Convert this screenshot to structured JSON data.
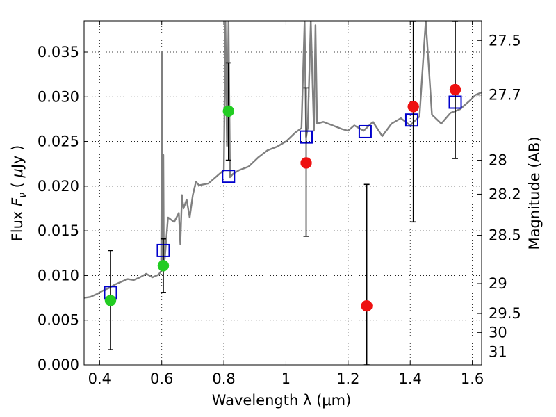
{
  "chart_data": {
    "type": "scatter",
    "xlabel": "Wavelength  λ (μm)",
    "ylabel_parts": [
      "Flux ",
      "F",
      "ν",
      "  ( ",
      "μ",
      "Jy )"
    ],
    "y2label": "Magnitude (AB)",
    "xlim": [
      0.35,
      1.63
    ],
    "ylim": [
      0.0,
      0.0385
    ],
    "grid": true,
    "x_ticks": [
      0.4,
      0.6,
      0.8,
      1.0,
      1.2,
      1.4,
      1.6
    ],
    "x_tick_labels": [
      "0.4",
      "0.6",
      "0.8",
      "1",
      "1.2",
      "1.4",
      "1.6"
    ],
    "y_ticks": [
      0.0,
      0.005,
      0.01,
      0.015,
      0.02,
      0.025,
      0.03,
      0.035
    ],
    "y_tick_labels": [
      "0.000",
      "0.005",
      "0.010",
      "0.015",
      "0.020",
      "0.025",
      "0.030",
      "0.035"
    ],
    "mag_tick_labels": [
      "27.5",
      "27.7",
      "28",
      "28.2",
      "28.5",
      "29",
      "29.5",
      "30",
      "31"
    ],
    "mag_tick_flux": [
      0.0363,
      0.0302,
      0.0229,
      0.0191,
      0.0145,
      0.0091,
      0.00575,
      0.00363,
      0.00144
    ],
    "colors": {
      "spectrum": "#808080",
      "model_box": "#0000cc",
      "detection": "#22cc22",
      "upper": "#ee1111",
      "errorbar": "#000000"
    },
    "spectrum": {
      "name": "",
      "x": [
        0.35,
        0.37,
        0.39,
        0.41,
        0.43,
        0.45,
        0.47,
        0.49,
        0.51,
        0.53,
        0.55,
        0.57,
        0.59,
        0.598,
        0.601,
        0.603,
        0.605,
        0.607,
        0.61,
        0.62,
        0.64,
        0.655,
        0.66,
        0.665,
        0.67,
        0.68,
        0.69,
        0.7,
        0.71,
        0.72,
        0.75,
        0.78,
        0.8,
        0.805,
        0.81,
        0.815,
        0.82,
        0.83,
        0.85,
        0.88,
        0.91,
        0.94,
        0.97,
        1.0,
        1.03,
        1.05,
        1.06,
        1.065,
        1.07,
        1.08,
        1.09,
        1.095,
        1.1,
        1.12,
        1.15,
        1.18,
        1.2,
        1.22,
        1.25,
        1.28,
        1.31,
        1.34,
        1.37,
        1.4,
        1.43,
        1.45,
        1.47,
        1.5,
        1.53,
        1.56,
        1.59,
        1.61,
        1.63
      ],
      "y": [
        0.0075,
        0.0076,
        0.0079,
        0.0083,
        0.0086,
        0.009,
        0.0093,
        0.0096,
        0.0095,
        0.0098,
        0.0102,
        0.0098,
        0.0101,
        0.0105,
        0.035,
        0.0114,
        0.0235,
        0.0112,
        0.012,
        0.0165,
        0.016,
        0.017,
        0.0135,
        0.019,
        0.0175,
        0.0185,
        0.0165,
        0.019,
        0.0205,
        0.0201,
        0.0203,
        0.0212,
        0.0218,
        0.0385,
        0.0245,
        0.0385,
        0.021,
        0.0214,
        0.0218,
        0.0222,
        0.0232,
        0.024,
        0.0244,
        0.025,
        0.026,
        0.0265,
        0.0385,
        0.0255,
        0.0265,
        0.0385,
        0.0262,
        0.038,
        0.027,
        0.0272,
        0.0268,
        0.0264,
        0.0262,
        0.0268,
        0.0262,
        0.0272,
        0.0256,
        0.027,
        0.0276,
        0.0268,
        0.0278,
        0.0385,
        0.028,
        0.027,
        0.0282,
        0.0286,
        0.0295,
        0.0302,
        0.0305
      ]
    },
    "model_boxes": {
      "x": [
        0.435,
        0.605,
        0.815,
        1.065,
        1.255,
        1.405,
        1.545
      ],
      "y": [
        0.0081,
        0.0128,
        0.0211,
        0.0255,
        0.0261,
        0.0274,
        0.0294
      ]
    },
    "points": [
      {
        "x": 0.435,
        "y": 0.0072,
        "err_lo": 0.0017,
        "err_hi": 0.0128,
        "kind": "detection"
      },
      {
        "x": 0.605,
        "y": 0.0111,
        "err_lo": 0.0081,
        "err_hi": 0.0141,
        "kind": "detection"
      },
      {
        "x": 0.815,
        "y": 0.0284,
        "err_lo": 0.0229,
        "err_hi": 0.0338,
        "kind": "detection"
      },
      {
        "x": 1.065,
        "y": 0.0226,
        "err_lo": 0.0144,
        "err_hi": 0.031,
        "kind": "upper"
      },
      {
        "x": 1.26,
        "y": 0.0066,
        "err_lo": 0.0,
        "err_hi": 0.0202,
        "kind": "upper"
      },
      {
        "x": 1.41,
        "y": 0.0289,
        "err_lo": 0.016,
        "err_hi": 0.0385,
        "kind": "upper"
      },
      {
        "x": 1.545,
        "y": 0.0308,
        "err_lo": 0.0231,
        "err_hi": 0.0385,
        "kind": "upper"
      }
    ]
  }
}
